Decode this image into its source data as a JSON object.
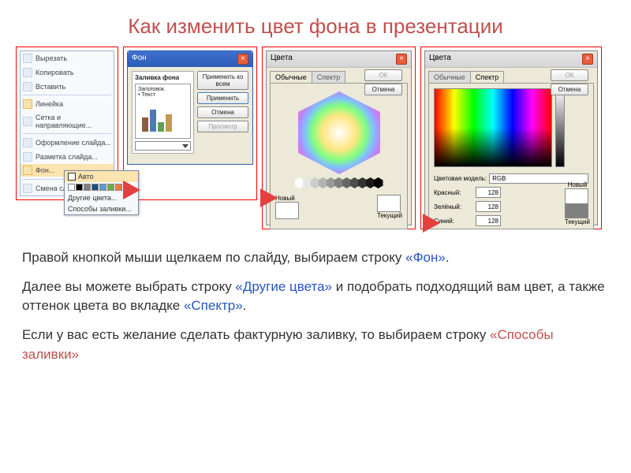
{
  "title": "Как изменить цвет фона в презентации",
  "context_menu": {
    "items": [
      {
        "label": "Вырезать",
        "icon_bg": "#e5edf7"
      },
      {
        "label": "Копировать",
        "icon_bg": "#e5edf7"
      },
      {
        "label": "Вставить",
        "icon_bg": "#e5edf7"
      },
      {
        "label": "Линейка",
        "icon_bg": "#fce4b0"
      },
      {
        "label": "Сетка и направляющие...",
        "icon_bg": "#e5edf7"
      },
      {
        "label": "Оформление слайда...",
        "icon_bg": "#e5edf7"
      },
      {
        "label": "Разметка слайда...",
        "icon_bg": "#e5edf7"
      },
      {
        "label": "Фон...",
        "icon_bg": "#fce4b0"
      },
      {
        "label": "Смена слайдов...",
        "icon_bg": "#e5edf7"
      }
    ],
    "submenu": {
      "auto": "Авто",
      "swatches": [
        "#ffffff",
        "#000000",
        "#808080",
        "#1f4e79",
        "#5b9bd5",
        "#70ad47",
        "#ed7d31",
        "#a5a5a5"
      ],
      "more_colors": "Другие цвета...",
      "fill_methods": "Способы заливки..."
    }
  },
  "fon_dialog": {
    "title": "Фон",
    "group_label": "Заливка фона",
    "preview": {
      "title_text": "Заголовок",
      "body_text": "• Текст",
      "bars": [
        {
          "h": 18,
          "color": "#8b5e3c"
        },
        {
          "h": 28,
          "color": "#4b7bb5"
        },
        {
          "h": 12,
          "color": "#5fa058"
        },
        {
          "h": 22,
          "color": "#c19a4e"
        }
      ]
    },
    "buttons": {
      "apply_all": "Применить ко всем",
      "apply": "Применить",
      "cancel": "Отмена",
      "preview": "Просмотр"
    }
  },
  "colors_std": {
    "title": "Цвета",
    "tab_std": "Обычные",
    "tab_spec": "Спектр",
    "ok": "ОК",
    "cancel": "Отмена",
    "new": "Новый",
    "current": "Текущий",
    "gray_hexes": [
      "#ffffff",
      "#e6e6e6",
      "#cccccc",
      "#b3b3b3",
      "#999999",
      "#808080",
      "#666666",
      "#4d4d4d",
      "#333333",
      "#1a1a1a",
      "#000000"
    ]
  },
  "colors_spec": {
    "title": "Цвета",
    "tab_std": "Обычные",
    "tab_spec": "Спектр",
    "ok": "ОК",
    "cancel": "Отмена",
    "model_label": "Цветовая модель:",
    "model_value": "RGB",
    "channels": [
      {
        "label": "Красный:",
        "value": "128"
      },
      {
        "label": "Зелёный:",
        "value": "128"
      },
      {
        "label": "Синий:",
        "value": "128"
      }
    ],
    "new": "Новый",
    "current": "Текущий"
  },
  "instructions": {
    "p1_a": "Правой кнопкой мыши щелкаем по слайду, выбираем строку ",
    "p1_b": "«Фон»",
    "p1_c": ".",
    "p2_a": "Далее вы можете выбрать строку ",
    "p2_b": "«Другие цвета»",
    "p2_c": " и подобрать подходящий вам цвет, а также оттенок цвета во вкладке ",
    "p2_d": "«Спектр»",
    "p2_e": ".",
    "p3_a": "Если у вас есть желание сделать фактурную заливку, то выбираем строку ",
    "p3_b": "«Способы заливки»"
  },
  "colors": {
    "arrow": "#e44040"
  }
}
